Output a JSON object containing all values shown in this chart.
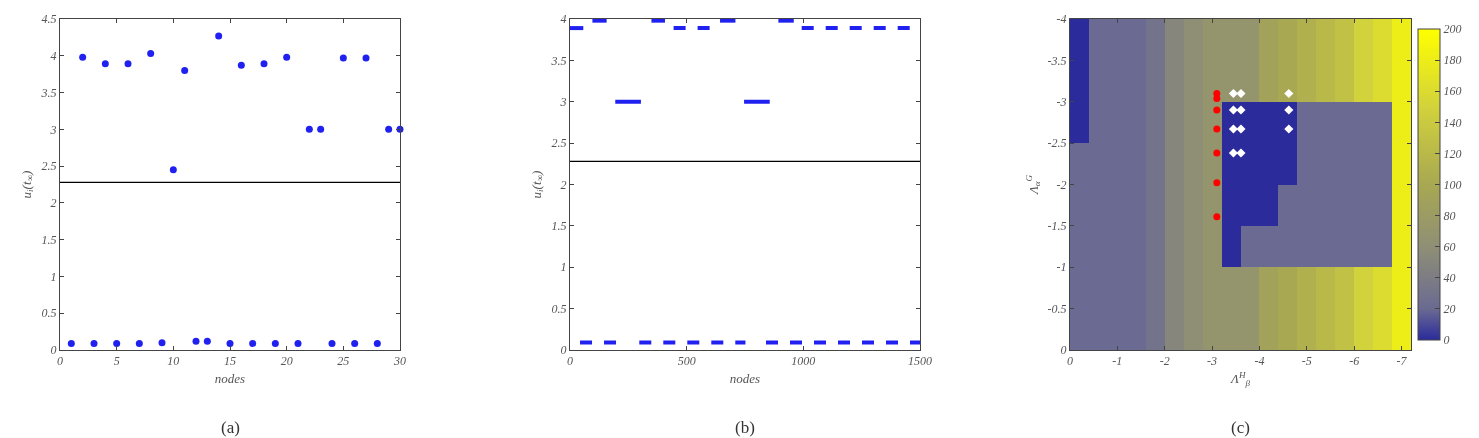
{
  "chart_data": [
    {
      "type": "scatter",
      "xlabel": "nodes",
      "ylabel": "u$_{i}$(t$_{∞}$)",
      "annotations": [
        "(a)"
      ],
      "marker": "circle",
      "grid": false,
      "x": [
        1,
        2,
        3,
        4,
        5,
        6,
        7,
        8,
        9,
        10,
        11,
        12,
        13,
        14,
        15,
        16,
        17,
        18,
        19,
        20,
        21,
        22,
        23,
        24,
        25,
        26,
        27,
        28,
        29,
        30
      ],
      "series": [
        {
          "color": "#2020f0",
          "values": [
            0.09,
            3.98,
            0.09,
            3.89,
            0.09,
            3.89,
            0.09,
            4.03,
            0.1,
            2.45,
            3.8,
            0.12,
            0.12,
            4.27,
            0.09,
            3.87,
            0.09,
            3.89,
            0.09,
            3.98,
            0.09,
            3.0,
            3.0,
            0.09,
            3.97,
            0.09,
            3.97,
            0.09,
            3.0,
            3.0
          ]
        }
      ],
      "xlim": [
        0,
        30
      ],
      "xticks": [
        0,
        5,
        10,
        15,
        20,
        25,
        30
      ],
      "ylim": [
        0,
        4.5
      ],
      "yticks": [
        0,
        0.5,
        1,
        1.5,
        2,
        2.5,
        3,
        3.5,
        4,
        4.5
      ],
      "ref_lines": [
        {
          "axis": "y",
          "value": 2.28,
          "color": "#000000"
        }
      ]
    },
    {
      "type": "line",
      "xlabel": "nodes",
      "ylabel": "u$_{i}$(t$_{∞}$)",
      "annotations": [
        "(b)"
      ],
      "grid": false,
      "series": [
        {
          "color": "#2020f0",
          "line_style": "dashed",
          "x": [
            43,
            209,
            null,
            297,
            752,
            null,
            840,
            1500,
            null,
            444,
            606,
            null,
            993,
            1459
          ],
          "values": [
            0.09,
            0.09,
            null,
            0.09,
            0.09,
            null,
            0.09,
            0.09,
            null,
            3.89,
            3.89,
            null,
            3.89,
            3.89
          ]
        },
        {
          "color": "#2020f0",
          "line_style": "solid",
          "x": [
            96,
            157,
            null,
            349,
            407,
            null,
            643,
            709,
            null,
            893,
            959,
            null,
            194,
            304,
            null,
            746,
            856
          ],
          "values": [
            3.98,
            3.98,
            null,
            3.98,
            3.98,
            null,
            3.98,
            3.98,
            null,
            3.98,
            3.98,
            null,
            3.0,
            3.0,
            null,
            3.0,
            3.0
          ]
        },
        {
          "color": "#2020f0",
          "line_style": "solid",
          "x": [
            0,
            57
          ],
          "values": [
            3.89,
            3.89
          ]
        }
      ],
      "xlim": [
        0,
        1500
      ],
      "xticks": [
        0,
        500,
        1000,
        1500
      ],
      "ylim": [
        0,
        4
      ],
      "yticks": [
        0,
        0.5,
        1,
        1.5,
        2,
        2.5,
        3,
        3.5,
        4
      ],
      "ref_lines": [
        {
          "axis": "y",
          "value": 2.28,
          "color": "#000000"
        }
      ]
    },
    {
      "type": "heatmap",
      "xlabel": "Λ$^{H}$$_{β}$",
      "ylabel": "Λ$_{α}$$^{G}$",
      "annotations": [
        "(c)"
      ],
      "x": [
        -0.2,
        -0.6,
        -1.0,
        -1.4,
        -1.8,
        -2.2,
        -2.6,
        -3.0,
        -3.4,
        -3.8,
        -4.2,
        -4.6,
        -5.0,
        -5.4,
        -5.8,
        -6.2,
        -6.6,
        -7.0
      ],
      "cells": [
        [
          0,
          20,
          20,
          20,
          30,
          50,
          60,
          70,
          70,
          70,
          90,
          100,
          110,
          120,
          130,
          150,
          160,
          180
        ],
        [
          0,
          20,
          20,
          20,
          30,
          50,
          60,
          70,
          70,
          70,
          90,
          100,
          110,
          120,
          130,
          150,
          160,
          180
        ],
        [
          0,
          20,
          20,
          20,
          30,
          50,
          60,
          70,
          0,
          0,
          0,
          0,
          20,
          20,
          20,
          20,
          20,
          180
        ],
        [
          20,
          20,
          20,
          20,
          30,
          50,
          60,
          70,
          0,
          0,
          0,
          0,
          20,
          20,
          20,
          20,
          20,
          180
        ],
        [
          20,
          20,
          20,
          20,
          30,
          50,
          60,
          70,
          0,
          0,
          0,
          20,
          20,
          20,
          20,
          20,
          20,
          180
        ],
        [
          20,
          20,
          20,
          20,
          30,
          50,
          60,
          70,
          0,
          20,
          20,
          20,
          20,
          20,
          20,
          20,
          20,
          180
        ],
        [
          20,
          20,
          20,
          20,
          30,
          50,
          60,
          70,
          70,
          70,
          90,
          100,
          110,
          120,
          130,
          150,
          160,
          180
        ],
        [
          20,
          20,
          20,
          20,
          30,
          50,
          60,
          70,
          70,
          70,
          90,
          100,
          110,
          120,
          130,
          150,
          160,
          180
        ]
      ],
      "clim": [
        0,
        200
      ],
      "cticks": [
        0,
        20,
        40,
        60,
        80,
        100,
        120,
        140,
        160,
        180,
        200
      ],
      "xlim": [
        0,
        -7.2
      ],
      "xticks": [
        0,
        -1,
        -2,
        -3,
        -4,
        -5,
        -6,
        -7
      ],
      "ylim": [
        0,
        -4
      ],
      "yticks": [
        0,
        -0.5,
        -1,
        -1.5,
        -2,
        -2.5,
        -3,
        -3.5,
        -4
      ],
      "series": [
        {
          "type": "scatter",
          "marker": "circle",
          "color": "#ff0000",
          "x": [
            -3.1,
            -3.1,
            -3.1,
            -3.1,
            -3.1,
            -3.1,
            -3.1
          ],
          "values": [
            -3.1,
            -3.04,
            -2.9,
            -2.67,
            -2.38,
            -2.02,
            -1.61
          ]
        },
        {
          "type": "scatter",
          "marker": "diamond",
          "color": "#ffffff",
          "x": [
            -3.45,
            -3.61,
            -3.45,
            -3.61,
            -3.45,
            -3.61,
            -3.45,
            -3.61,
            -4.62,
            -4.62,
            -4.62
          ],
          "values": [
            -3.1,
            -3.1,
            -2.9,
            -2.9,
            -2.67,
            -2.67,
            -2.38,
            -2.38,
            -3.1,
            -2.9,
            -2.67
          ]
        }
      ]
    }
  ]
}
